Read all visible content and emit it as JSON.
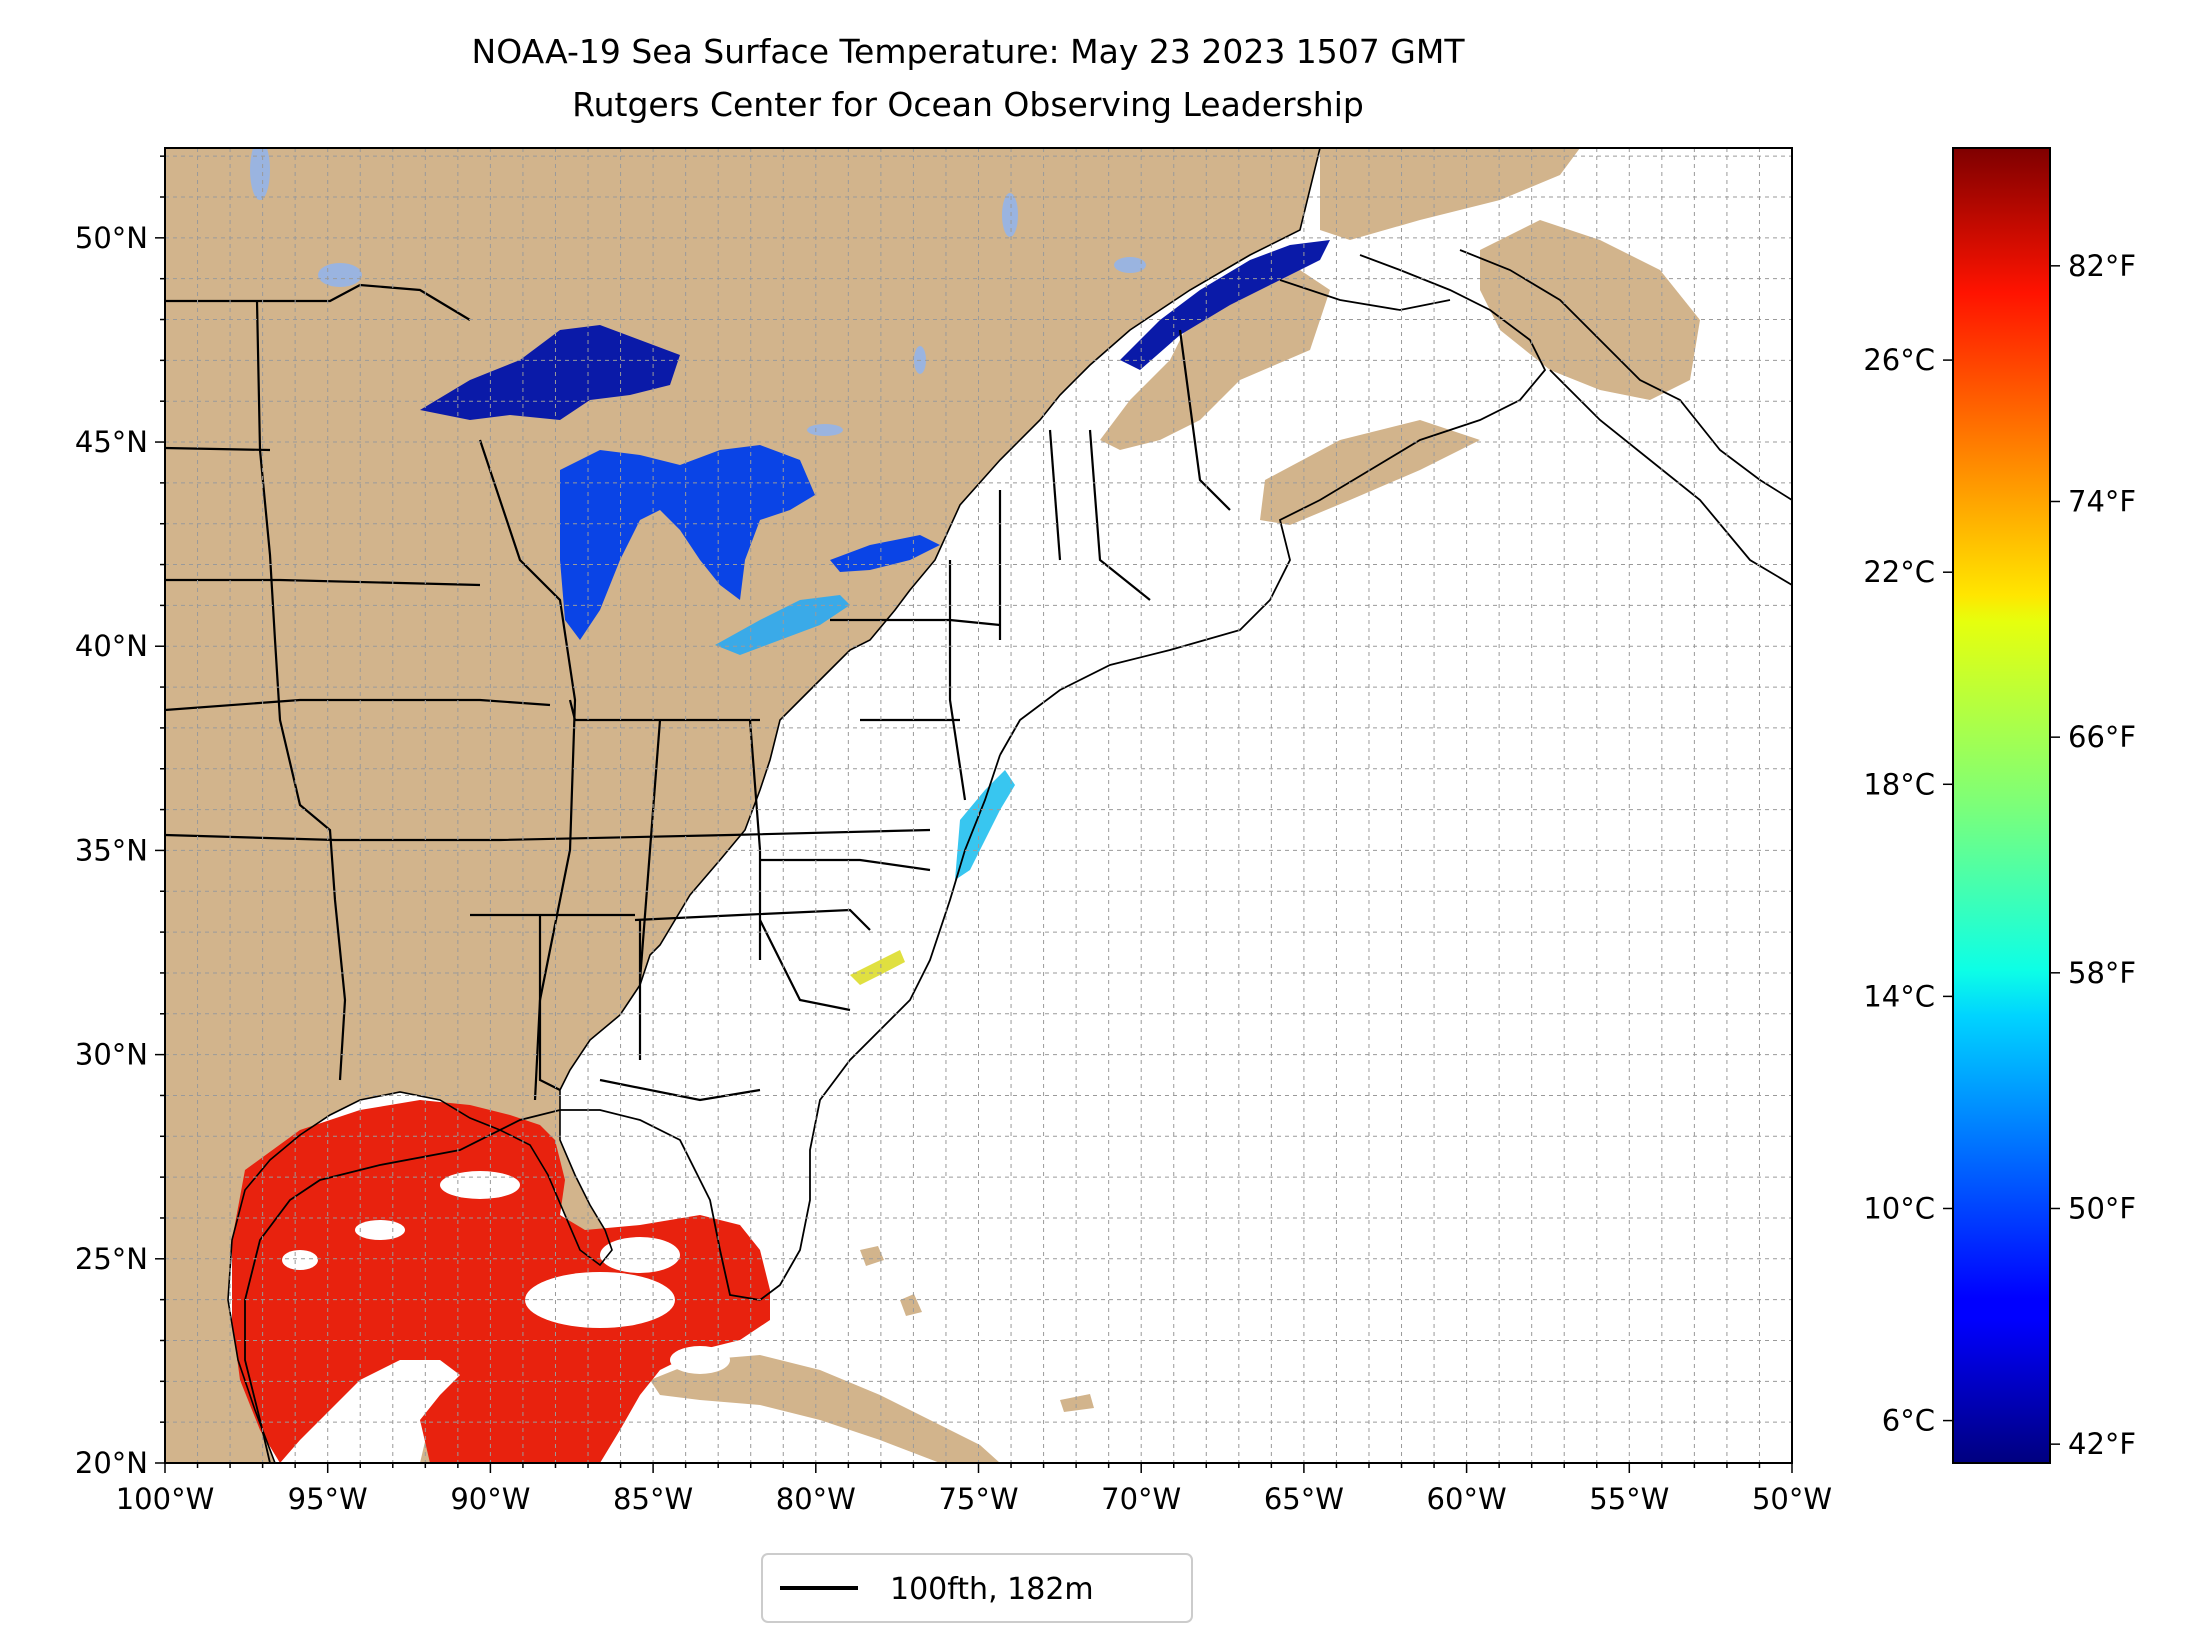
{
  "map": {
    "title_line1": "NOAA-19 Sea Surface Temperature: May 23 2023 1507 GMT",
    "title_line2": "Rutgers Center for Ocean Observing Leadership",
    "projection": "plate carree",
    "extent": {
      "lon_min": -100,
      "lon_max": -50,
      "lat_min": 20,
      "lat_max": 52.2
    },
    "lat_ticks": [
      {
        "value": 20,
        "label": "20°N"
      },
      {
        "value": 25,
        "label": "25°N"
      },
      {
        "value": 30,
        "label": "30°N"
      },
      {
        "value": 35,
        "label": "35°N"
      },
      {
        "value": 40,
        "label": "40°N"
      },
      {
        "value": 45,
        "label": "45°N"
      },
      {
        "value": 50,
        "label": "50°N"
      }
    ],
    "lon_ticks": [
      {
        "value": -100,
        "label": "100°W"
      },
      {
        "value": -95,
        "label": "95°W"
      },
      {
        "value": -90,
        "label": "90°W"
      },
      {
        "value": -85,
        "label": "85°W"
      },
      {
        "value": -80,
        "label": "80°W"
      },
      {
        "value": -75,
        "label": "75°W"
      },
      {
        "value": -70,
        "label": "70°W"
      },
      {
        "value": -65,
        "label": "65°W"
      },
      {
        "value": -60,
        "label": "60°W"
      },
      {
        "value": -55,
        "label": "55°W"
      },
      {
        "value": -50,
        "label": "50°W"
      }
    ],
    "gridlines": true,
    "colors": {
      "land": "#d2b48c",
      "ocean_no_data": "#ffffff",
      "lakes_no_data": "#9ab4e0",
      "borders": "#000000",
      "gulf_sst": "#e8220e",
      "lake_superior_sst": "#0a1aa8",
      "lakes_sst": "#0a44e6",
      "lake_erie_sst": "#3aaae8"
    },
    "legend": {
      "label": "100fth, 182m",
      "placement": "bottom-center"
    }
  },
  "colorbar": {
    "colormap": "jet",
    "range_c": [
      5.2,
      30.0
    ],
    "celsius_ticks": [
      {
        "value": 6,
        "label": "6°C"
      },
      {
        "value": 10,
        "label": "10°C"
      },
      {
        "value": 14,
        "label": "14°C"
      },
      {
        "value": 18,
        "label": "18°C"
      },
      {
        "value": 22,
        "label": "22°C"
      },
      {
        "value": 26,
        "label": "26°C"
      }
    ],
    "fahrenheit_ticks": [
      {
        "value": 42,
        "label": "42°F"
      },
      {
        "value": 50,
        "label": "50°F"
      },
      {
        "value": 58,
        "label": "58°F"
      },
      {
        "value": 66,
        "label": "66°F"
      },
      {
        "value": 74,
        "label": "74°F"
      },
      {
        "value": 82,
        "label": "82°F"
      }
    ]
  }
}
